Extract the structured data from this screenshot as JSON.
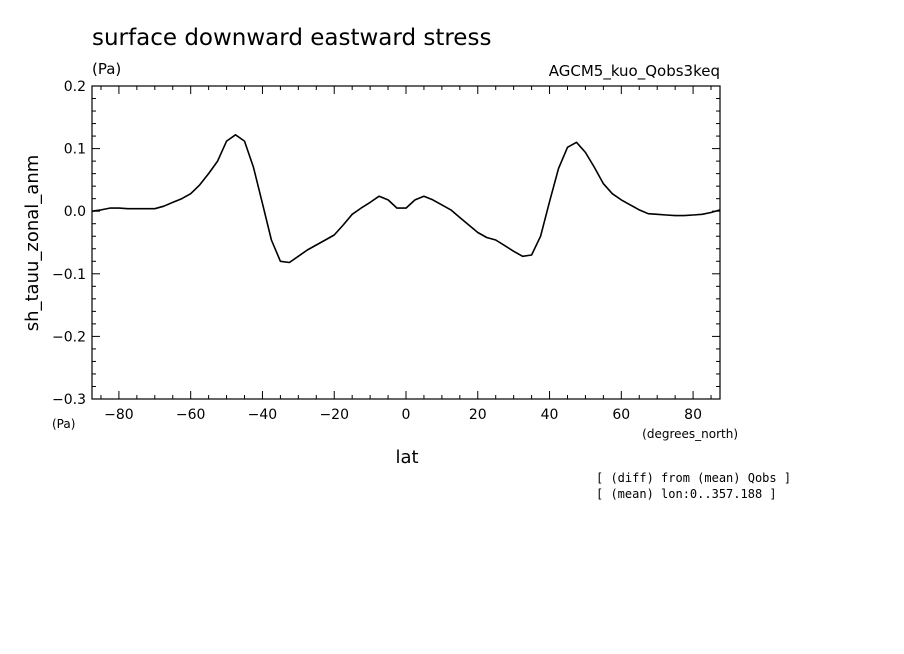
{
  "chart_data": {
    "type": "line",
    "title": "surface downward eastward stress",
    "units_label": "(Pa)",
    "model_label": "AGCM5_kuo_Qobs3keq",
    "xlabel": "lat",
    "x_units": "(degrees_north)",
    "ylabel": "sh_tauu_zonal_anm",
    "y_units": "(Pa)",
    "xlim": [
      -87.5,
      87.5
    ],
    "ylim": [
      -0.3,
      0.2
    ],
    "x_ticks": [
      -80,
      -60,
      -40,
      -20,
      0,
      20,
      40,
      60,
      80
    ],
    "x_tick_labels": [
      "−80",
      "−60",
      "−40",
      "−20",
      "0",
      "20",
      "40",
      "60",
      "80"
    ],
    "y_ticks": [
      0.2,
      0.1,
      0.0,
      -0.1,
      -0.2,
      -0.3
    ],
    "y_tick_labels": [
      "0.2",
      "0.1",
      "0.0",
      "−0.1",
      "−0.2",
      "−0.3"
    ],
    "grid": false,
    "notes": [
      "[ (diff) from (mean) Qobs ]",
      "[ (mean) lon:0..357.188 ]"
    ],
    "series": [
      {
        "x": [
          -87.5,
          -85,
          -82.5,
          -80,
          -77.5,
          -75,
          -72.5,
          -70,
          -67.5,
          -65,
          -62.5,
          -60,
          -57.5,
          -55,
          -52.5,
          -50,
          -47.5,
          -45,
          -42.5,
          -40,
          -37.5,
          -35,
          -32.5,
          -30,
          -27.5,
          -25,
          -22.5,
          -20,
          -17.5,
          -15,
          -12.5,
          -10,
          -7.5,
          -5,
          -2.5,
          0,
          2.5,
          5,
          7.5,
          10,
          12.5,
          15,
          17.5,
          20,
          22.5,
          25,
          27.5,
          30,
          32.5,
          35,
          37.5,
          40,
          42.5,
          45,
          47.5,
          50,
          52.5,
          55,
          57.5,
          60,
          62.5,
          65,
          67.5,
          70,
          72.5,
          75,
          77.5,
          80,
          82.5,
          85,
          87.5
        ],
        "values": [
          0.0,
          0.002,
          0.005,
          0.005,
          0.004,
          0.004,
          0.004,
          0.004,
          0.008,
          0.014,
          0.02,
          0.028,
          0.042,
          0.06,
          0.08,
          0.112,
          0.122,
          0.112,
          0.07,
          0.012,
          -0.046,
          -0.08,
          -0.082,
          -0.072,
          -0.062,
          -0.054,
          -0.046,
          -0.038,
          -0.022,
          -0.005,
          0.005,
          0.014,
          0.024,
          0.018,
          0.005,
          0.005,
          0.018,
          0.024,
          0.018,
          0.01,
          0.002,
          -0.01,
          -0.022,
          -0.034,
          -0.042,
          -0.046,
          -0.055,
          -0.064,
          -0.072,
          -0.07,
          -0.04,
          0.015,
          0.068,
          0.102,
          0.11,
          0.094,
          0.07,
          0.044,
          0.028,
          0.018,
          0.01,
          0.002,
          -0.004,
          -0.005,
          -0.006,
          -0.007,
          -0.007,
          -0.006,
          -0.005,
          -0.002,
          0.002
        ],
        "color": "#000000"
      }
    ]
  }
}
